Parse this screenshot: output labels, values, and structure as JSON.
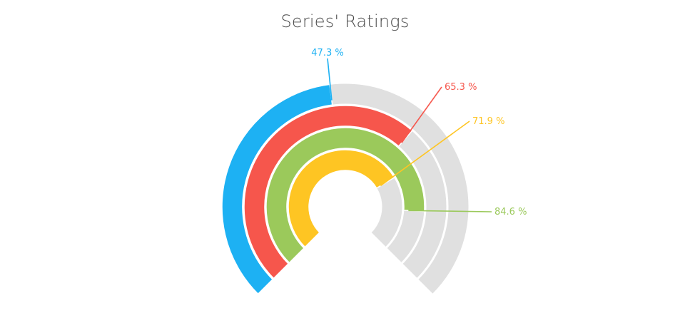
{
  "chart_data": {
    "type": "radial-gauge",
    "title": "Series' Ratings",
    "range": [
      0,
      100
    ],
    "start_angle_deg": 225,
    "end_angle_deg": -45,
    "track_color": "#e0e0e0",
    "series": [
      {
        "value": 47.3,
        "label": "47.3 %",
        "color": "#1db1f3"
      },
      {
        "value": 65.3,
        "label": "65.3 %",
        "color": "#f6564c"
      },
      {
        "value": 84.6,
        "label": "84.6 %",
        "color": "#9bc95b"
      },
      {
        "value": 71.9,
        "label": "71.9 %",
        "color": "#fec523"
      }
    ]
  }
}
